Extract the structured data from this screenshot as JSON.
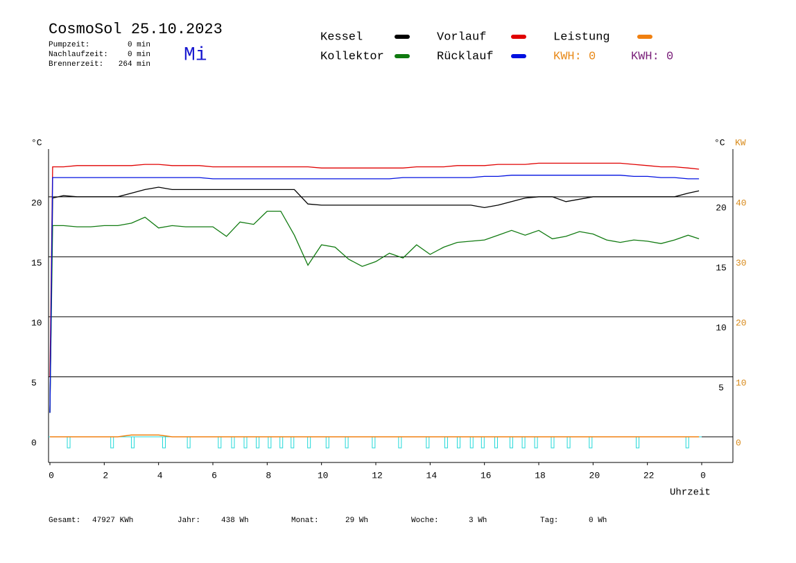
{
  "chart_data": {
    "type": "line",
    "title": "CosmoSol 25.10.2023",
    "day": "Mi",
    "info": [
      {
        "label": "Pumpzeit:",
        "value": "0 min"
      },
      {
        "label": "Nachlaufzeit:",
        "value": "0 min"
      },
      {
        "label": "Brennerzeit:",
        "value": "264 min"
      }
    ],
    "y_label": "°C",
    "y2_label_left": "°C",
    "y2_label": "KW",
    "x_label": "Uhrzeit",
    "kwh_labels": [
      {
        "text": "KWH: 0",
        "color": "#e88a1a"
      },
      {
        "text": "KWH: 0",
        "color": "#7a1f7a"
      }
    ],
    "footer": [
      {
        "label": "Gesamt:",
        "value": "47927 KWh"
      },
      {
        "label": "Jahr:",
        "value": "438 Wh"
      },
      {
        "label": "Monat:",
        "value": "29 Wh"
      },
      {
        "label": "Woche:",
        "value": "3 Wh"
      },
      {
        "label": "Tag:",
        "value": "0 Wh"
      }
    ],
    "x": [
      0,
      0.1,
      0.5,
      1,
      1.5,
      2,
      2.5,
      3,
      3.5,
      4,
      4.5,
      5,
      5.5,
      6,
      6.5,
      7,
      7.5,
      8,
      8.5,
      9,
      9.5,
      10,
      10.5,
      11,
      11.5,
      12,
      12.5,
      13,
      13.5,
      14,
      14.5,
      15,
      15.5,
      16,
      16.5,
      17,
      17.5,
      18,
      18.5,
      19,
      19.5,
      20,
      20.5,
      21,
      21.5,
      22,
      22.5,
      23,
      23.5,
      23.9
    ],
    "xlim": [
      0,
      24
    ],
    "xticks": [
      0,
      2,
      4,
      6,
      8,
      10,
      12,
      14,
      16,
      18,
      20,
      22,
      {
        "value": 24,
        "label": "0"
      }
    ],
    "ylim": [
      -2,
      24
    ],
    "yticks": [
      0,
      5,
      10,
      15,
      20
    ],
    "y_right_ticks": [
      5,
      10,
      15,
      20
    ],
    "y2lim": [
      -4,
      48
    ],
    "y2ticks": [
      0,
      10,
      20,
      30,
      40
    ],
    "grid": true,
    "series": [
      {
        "name": "Kessel",
        "color": "#000000",
        "values": [
          2,
          19.9,
          20.1,
          20.0,
          20.0,
          20.0,
          20.0,
          20.3,
          20.6,
          20.8,
          20.6,
          20.6,
          20.6,
          20.6,
          20.6,
          20.6,
          20.6,
          20.6,
          20.6,
          20.6,
          19.4,
          19.3,
          19.3,
          19.3,
          19.3,
          19.3,
          19.3,
          19.3,
          19.3,
          19.3,
          19.3,
          19.3,
          19.3,
          19.1,
          19.3,
          19.6,
          19.9,
          20.0,
          20.0,
          19.6,
          19.8,
          20.0,
          20.0,
          20.0,
          20.0,
          20.0,
          20.0,
          20.0,
          20.3,
          20.5
        ]
      },
      {
        "name": "Vorlauf",
        "color": "#e00000",
        "values": [
          5,
          22.5,
          22.5,
          22.6,
          22.6,
          22.6,
          22.6,
          22.6,
          22.7,
          22.7,
          22.6,
          22.6,
          22.6,
          22.5,
          22.5,
          22.5,
          22.5,
          22.5,
          22.5,
          22.5,
          22.5,
          22.4,
          22.4,
          22.4,
          22.4,
          22.4,
          22.4,
          22.4,
          22.5,
          22.5,
          22.5,
          22.6,
          22.6,
          22.6,
          22.7,
          22.7,
          22.7,
          22.8,
          22.8,
          22.8,
          22.8,
          22.8,
          22.8,
          22.8,
          22.7,
          22.6,
          22.5,
          22.5,
          22.4,
          22.3
        ]
      },
      {
        "name": "Leistung",
        "color": "#f08010",
        "axis": "y2",
        "values": [
          0,
          0,
          0,
          0,
          0,
          0,
          0,
          0.3,
          0.3,
          0.3,
          0,
          0,
          0,
          0,
          0,
          0,
          0,
          0,
          0,
          0,
          0,
          0,
          0,
          0,
          0,
          0,
          0,
          0,
          0,
          0,
          0,
          0,
          0,
          0,
          0,
          0,
          0,
          0,
          0,
          0,
          0,
          0,
          0,
          0,
          0,
          0,
          0,
          0,
          0,
          0
        ]
      },
      {
        "name": "Kollektor",
        "color": "#107a10",
        "values": [
          2,
          17.6,
          17.6,
          17.5,
          17.5,
          17.6,
          17.6,
          17.8,
          18.3,
          17.4,
          17.6,
          17.5,
          17.5,
          17.5,
          16.7,
          17.9,
          17.7,
          18.8,
          18.8,
          16.8,
          14.3,
          16.0,
          15.8,
          14.8,
          14.2,
          14.6,
          15.3,
          14.9,
          16.0,
          15.2,
          15.8,
          16.2,
          16.3,
          16.4,
          16.8,
          17.2,
          16.8,
          17.2,
          16.5,
          16.7,
          17.1,
          16.9,
          16.4,
          16.2,
          16.4,
          16.3,
          16.1,
          16.4,
          16.8,
          16.5
        ]
      },
      {
        "name": "Rücklauf",
        "color": "#0010e0",
        "values": [
          2,
          21.6,
          21.6,
          21.6,
          21.6,
          21.6,
          21.6,
          21.6,
          21.6,
          21.6,
          21.6,
          21.6,
          21.6,
          21.5,
          21.5,
          21.5,
          21.5,
          21.5,
          21.5,
          21.5,
          21.5,
          21.5,
          21.5,
          21.5,
          21.5,
          21.5,
          21.5,
          21.6,
          21.6,
          21.6,
          21.6,
          21.6,
          21.6,
          21.7,
          21.7,
          21.8,
          21.8,
          21.8,
          21.8,
          21.8,
          21.8,
          21.8,
          21.8,
          21.8,
          21.7,
          21.7,
          21.6,
          21.6,
          21.5,
          21.5
        ]
      }
    ],
    "pump_color": "#20d8d8",
    "pump_pulses_x": [
      0.69,
      2.29,
      3.05,
      4.2,
      5.11,
      6.25,
      6.74,
      7.2,
      7.65,
      8.09,
      8.52,
      8.93,
      9.54,
      10.22,
      10.93,
      11.92,
      12.89,
      13.91,
      14.59,
      15.05,
      15.53,
      15.94,
      16.43,
      16.99,
      17.44,
      17.9,
      18.51,
      19.1,
      19.91,
      21.64,
      23.47
    ]
  }
}
